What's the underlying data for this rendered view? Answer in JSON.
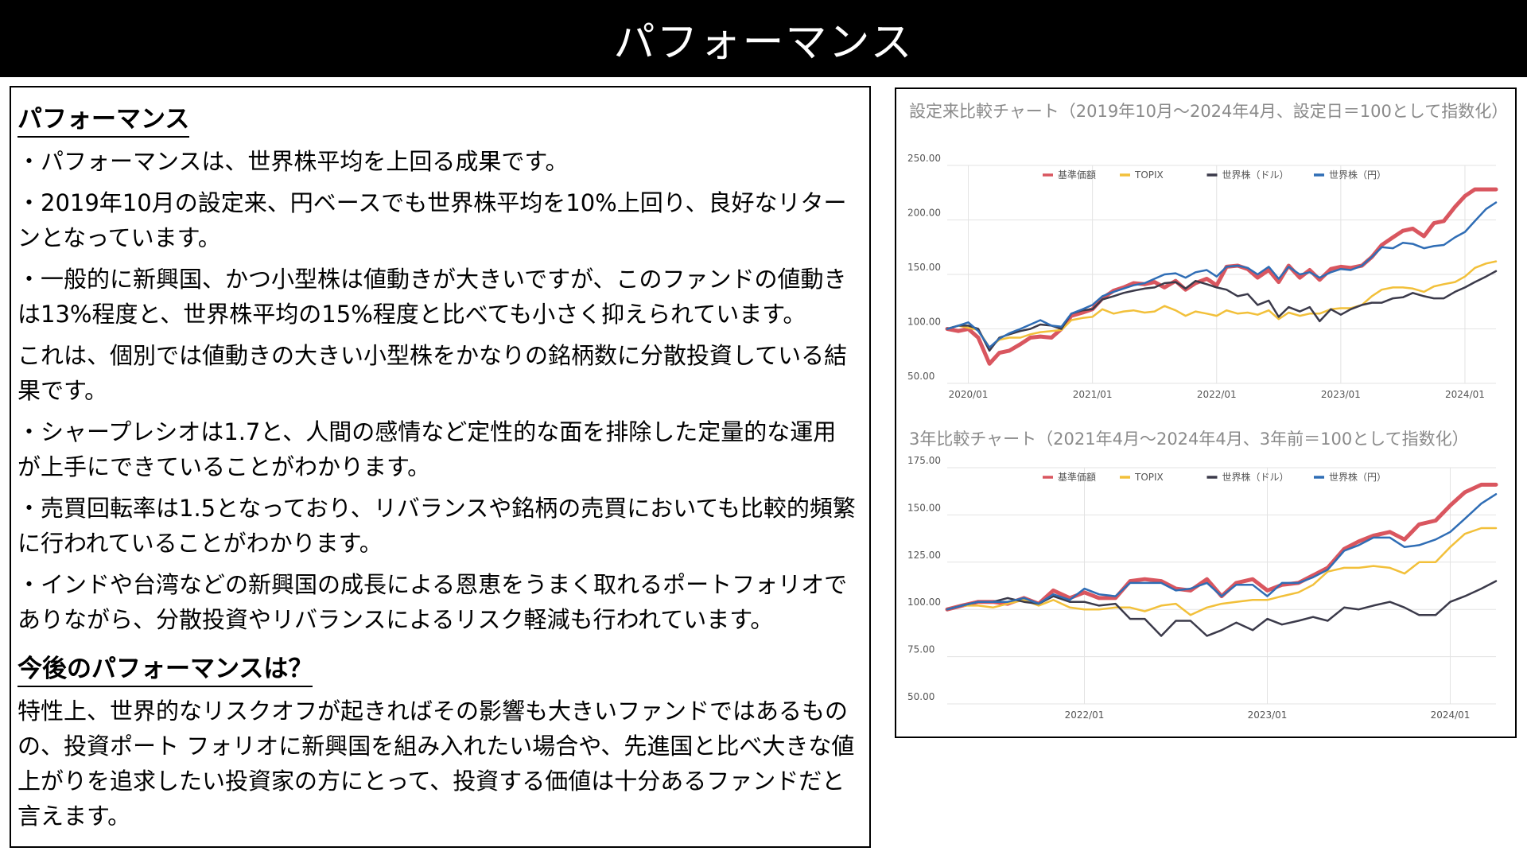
{
  "header": {
    "title": "パフォーマンス"
  },
  "left": {
    "section1_title": "パフォーマンス",
    "paragraphs": [
      "・パフォーマンスは、世界株平均を上回る成果です。",
      "・2019年10月の設定来、円ベースでも世界株平均を10%上回り、良好なリターンとなっています。",
      "・一般的に新興国、かつ小型株は値動きが大きいですが、このファンドの値動きは13%程度と、世界株平均の15%程度と比べても小さく抑えられています。",
      "これは、個別では値動きの大きい小型株をかなりの銘柄数に分散投資している結果です。",
      "・シャープレシオは1.7と、人間の感情など定性的な面を排除した定量的な運用が上手にできていることがわかります。",
      "・売買回転率は1.5となっており、リバランスや銘柄の売買においても比較的頻繁に行われていることがわかります。",
      "・インドや台湾などの新興国の成長による恩恵をうまく取れるポートフォリオでありながら、分散投資やリバランスによるリスク軽減も行われています。"
    ],
    "section2_title": "今後のパフォーマンスは？",
    "closing": "特性上、世界的なリスクオフが起きればその影響も大きいファンドではあるものの、投資ポート フォリオに新興国を組み入れたい場合や、先進国と比べ大きな値上がりを追求したい投資家の方にとって、投資する価値は十分あるファンドだと言えます。"
  },
  "chart_data": [
    {
      "type": "line",
      "title": "設定来比較チャート（2019年10月〜2024年4月、設定日＝100として指数化）",
      "xlabel": "",
      "ylabel": "",
      "ylim": [
        50,
        250
      ],
      "xlim": [
        2019.83,
        2024.25
      ],
      "y_ticks": [
        "50.00",
        "100.00",
        "150.00",
        "200.00",
        "250.00"
      ],
      "x_ticks": [
        {
          "label": "2020/01",
          "x": 2020.0
        },
        {
          "label": "2021/01",
          "x": 2021.0
        },
        {
          "label": "2022/01",
          "x": 2022.0
        },
        {
          "label": "2023/01",
          "x": 2023.0
        },
        {
          "label": "2024/01",
          "x": 2024.0
        }
      ],
      "grid": true,
      "legend_position": "top",
      "x": [
        2019.83,
        2019.92,
        2020.0,
        2020.08,
        2020.17,
        2020.25,
        2020.33,
        2020.42,
        2020.5,
        2020.58,
        2020.67,
        2020.75,
        2020.83,
        2020.92,
        2021.0,
        2021.08,
        2021.17,
        2021.25,
        2021.33,
        2021.42,
        2021.5,
        2021.58,
        2021.67,
        2021.75,
        2021.83,
        2021.92,
        2022.0,
        2022.08,
        2022.17,
        2022.25,
        2022.33,
        2022.42,
        2022.5,
        2022.58,
        2022.67,
        2022.75,
        2022.83,
        2022.92,
        2023.0,
        2023.08,
        2023.17,
        2023.25,
        2023.33,
        2023.42,
        2023.5,
        2023.58,
        2023.67,
        2023.75,
        2023.83,
        2023.92,
        2024.0,
        2024.08,
        2024.17,
        2024.25
      ],
      "series": [
        {
          "name": "基準価額",
          "color": "#d9565f",
          "width": 5,
          "values": [
            100,
            98,
            100,
            92,
            68,
            78,
            80,
            86,
            92,
            93,
            92,
            100,
            112,
            115,
            118,
            128,
            135,
            138,
            142,
            141,
            143,
            138,
            144,
            136,
            142,
            146,
            140,
            157,
            158,
            155,
            147,
            154,
            143,
            158,
            147,
            154,
            145,
            155,
            157,
            156,
            158,
            166,
            177,
            184,
            190,
            192,
            185,
            197,
            199,
            212,
            222,
            228,
            228,
            228
          ]
        },
        {
          "name": "TOPIX",
          "color": "#f2c03a",
          "width": 2.5,
          "values": [
            100,
            103,
            101,
            99,
            83,
            90,
            92,
            92,
            95,
            97,
            98,
            99,
            108,
            110,
            111,
            118,
            114,
            116,
            117,
            115,
            116,
            121,
            117,
            112,
            116,
            114,
            112,
            117,
            114,
            115,
            113,
            117,
            109,
            115,
            112,
            114,
            114,
            118,
            119,
            119,
            122,
            130,
            136,
            138,
            138,
            137,
            134,
            139,
            141,
            143,
            148,
            156,
            160,
            162
          ]
        },
        {
          "name": "世界株（ドル）",
          "color": "#3b3a4a",
          "width": 2.5,
          "values": [
            100,
            103,
            103,
            100,
            80,
            92,
            95,
            98,
            100,
            104,
            103,
            100,
            114,
            117,
            118,
            127,
            130,
            133,
            135,
            137,
            138,
            142,
            143,
            137,
            144,
            141,
            138,
            136,
            130,
            132,
            122,
            126,
            111,
            120,
            116,
            120,
            107,
            118,
            113,
            118,
            122,
            124,
            124,
            128,
            129,
            133,
            130,
            128,
            128,
            134,
            138,
            143,
            148,
            153
          ]
        },
        {
          "name": "世界株（円）",
          "color": "#2f6db5",
          "width": 2.5,
          "values": [
            100,
            103,
            106,
            98,
            83,
            91,
            96,
            100,
            104,
            108,
            103,
            102,
            114,
            118,
            122,
            130,
            134,
            137,
            140,
            142,
            146,
            150,
            151,
            147,
            152,
            154,
            148,
            157,
            158,
            156,
            150,
            157,
            146,
            157,
            150,
            152,
            147,
            152,
            155,
            154,
            158,
            166,
            175,
            174,
            179,
            178,
            174,
            176,
            177,
            184,
            189,
            199,
            210,
            216
          ]
        }
      ]
    },
    {
      "type": "line",
      "title": "3年比較チャート（2021年4月〜2024年4月、3年前＝100として指数化）",
      "xlabel": "",
      "ylabel": "",
      "ylim": [
        50,
        175
      ],
      "xlim": [
        2021.25,
        2024.25
      ],
      "y_ticks": [
        "50.00",
        "75.00",
        "100.00",
        "125.00",
        "150.00",
        "175.00"
      ],
      "x_ticks": [
        {
          "label": "2022/01",
          "x": 2022.0
        },
        {
          "label": "2023/01",
          "x": 2023.0
        },
        {
          "label": "2024/01",
          "x": 2024.0
        }
      ],
      "grid": true,
      "legend_position": "top",
      "x": [
        2021.25,
        2021.33,
        2021.42,
        2021.5,
        2021.58,
        2021.67,
        2021.75,
        2021.83,
        2021.92,
        2022.0,
        2022.08,
        2022.17,
        2022.25,
        2022.33,
        2022.42,
        2022.5,
        2022.58,
        2022.67,
        2022.75,
        2022.83,
        2022.92,
        2023.0,
        2023.08,
        2023.17,
        2023.25,
        2023.33,
        2023.42,
        2023.5,
        2023.58,
        2023.67,
        2023.75,
        2023.83,
        2023.92,
        2024.0,
        2024.08,
        2024.17,
        2024.25
      ],
      "series": [
        {
          "name": "基準価額",
          "color": "#d9565f",
          "width": 5,
          "values": [
            100,
            102,
            104,
            104,
            103,
            106,
            103,
            110,
            106,
            109,
            106,
            106,
            115,
            116,
            115,
            111,
            110,
            116,
            107,
            114,
            116,
            110,
            113,
            114,
            118,
            122,
            132,
            136,
            139,
            141,
            137,
            145,
            147,
            155,
            162,
            166,
            166
          ]
        },
        {
          "name": "TOPIX",
          "color": "#f2c03a",
          "width": 2.5,
          "values": [
            100,
            102,
            102,
            101,
            103,
            105,
            102,
            105,
            101,
            100,
            100,
            101,
            101,
            99,
            102,
            103,
            97,
            101,
            103,
            104,
            105,
            105,
            107,
            109,
            113,
            120,
            122,
            122,
            123,
            122,
            119,
            125,
            125,
            133,
            140,
            143,
            143
          ]
        },
        {
          "name": "世界株（ドル）",
          "color": "#3b3a4a",
          "width": 2.5,
          "values": [
            100,
            102,
            104,
            104,
            106,
            104,
            103,
            107,
            104,
            104,
            102,
            103,
            95,
            95,
            86,
            94,
            94,
            86,
            89,
            93,
            89,
            95,
            92,
            94,
            96,
            94,
            101,
            100,
            102,
            104,
            101,
            97,
            97,
            104,
            107,
            111,
            115
          ]
        },
        {
          "name": "世界株（円）",
          "color": "#2f6db5",
          "width": 2.5,
          "values": [
            100,
            102,
            104,
            104,
            104,
            106,
            103,
            108,
            105,
            111,
            108,
            107,
            114,
            114,
            114,
            110,
            111,
            114,
            107,
            113,
            113,
            107,
            114,
            114,
            117,
            121,
            131,
            134,
            138,
            138,
            133,
            134,
            137,
            141,
            148,
            156,
            161
          ]
        }
      ]
    }
  ]
}
